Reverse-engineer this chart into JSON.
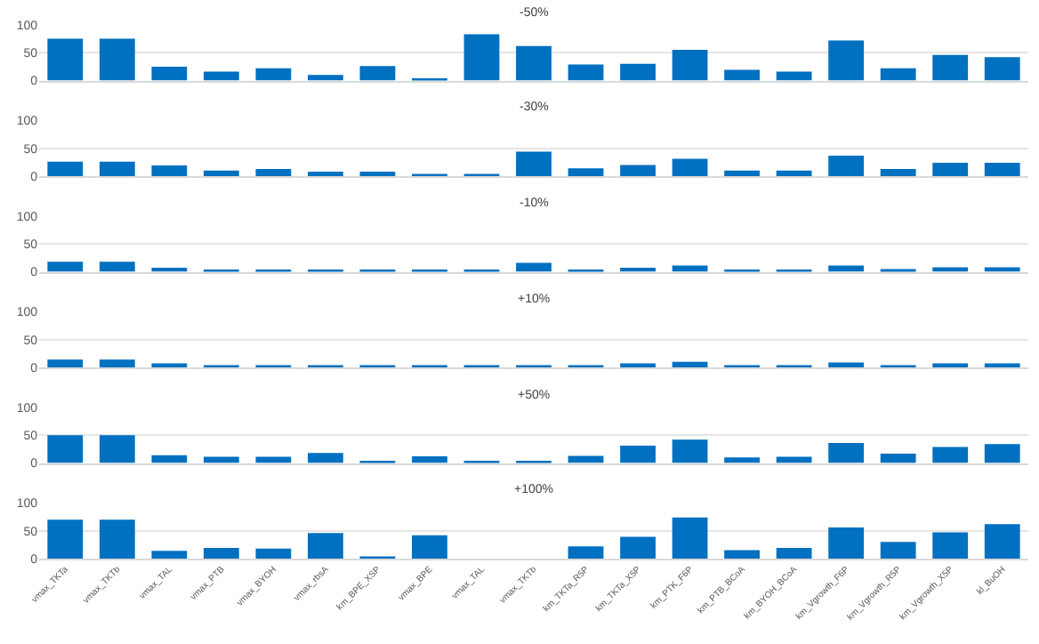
{
  "chart_data": [
    {
      "type": "bar",
      "title": "-50%",
      "categories": [
        null,
        null,
        null,
        null,
        null,
        null,
        null,
        null,
        null,
        null,
        null,
        null,
        null,
        null,
        null,
        null,
        null,
        null,
        null
      ],
      "color": "#0070c0",
      "values": [
        75,
        75,
        25,
        16,
        22,
        10,
        26,
        1,
        83,
        62,
        29,
        30,
        55,
        19,
        16,
        72,
        22,
        46,
        42
      ],
      "ylim": [
        0,
        100
      ],
      "yticks": [
        0,
        50,
        100
      ],
      "grid": "y",
      "tick_labels": "y"
    },
    {
      "type": "bar",
      "title": "-30%",
      "categories": [
        null,
        null,
        null,
        null,
        null,
        null,
        null,
        null,
        null,
        null,
        null,
        null,
        null,
        null,
        null,
        null,
        null,
        null,
        null
      ],
      "color": "#0070c0",
      "values": [
        26,
        26,
        19,
        10,
        13,
        8,
        8,
        1,
        1,
        44,
        14,
        20,
        31,
        10,
        10,
        37,
        13,
        24,
        24
      ],
      "ylim": [
        0,
        100
      ],
      "yticks": [
        0,
        50,
        100
      ],
      "grid": "y",
      "tick_labels": "y"
    },
    {
      "type": "bar",
      "title": "-10%",
      "categories": [
        null,
        null,
        null,
        null,
        null,
        null,
        null,
        null,
        null,
        null,
        null,
        null,
        null,
        null,
        null,
        null,
        null,
        null,
        null
      ],
      "color": "#0070c0",
      "values": [
        18,
        18,
        7,
        3,
        3,
        3,
        2,
        2,
        1,
        16,
        4,
        7,
        11,
        3,
        3,
        11,
        5,
        8,
        8
      ],
      "ylim": [
        0,
        100
      ],
      "yticks": [
        0,
        50,
        100
      ],
      "grid": "y",
      "tick_labels": "y"
    },
    {
      "type": "bar",
      "title": "+10%",
      "categories": [
        null,
        null,
        null,
        null,
        null,
        null,
        null,
        null,
        null,
        null,
        null,
        null,
        null,
        null,
        null,
        null,
        null,
        null,
        null
      ],
      "color": "#0070c0",
      "values": [
        14,
        14,
        7,
        3,
        4,
        4,
        1,
        2,
        1,
        1,
        4,
        7,
        10,
        3,
        3,
        9,
        4,
        7,
        7
      ],
      "ylim": [
        0,
        100
      ],
      "yticks": [
        0,
        50,
        100
      ],
      "grid": "y",
      "tick_labels": "y"
    },
    {
      "type": "bar",
      "title": "+50%",
      "categories": [
        null,
        null,
        null,
        null,
        null,
        null,
        null,
        null,
        null,
        null,
        null,
        null,
        null,
        null,
        null,
        null,
        null,
        null,
        null
      ],
      "color": "#0070c0",
      "values": [
        50,
        50,
        14,
        11,
        11,
        18,
        2,
        12,
        1,
        1,
        13,
        31,
        42,
        10,
        11,
        36,
        17,
        29,
        34
      ],
      "ylim": [
        0,
        100
      ],
      "yticks": [
        0,
        50,
        100
      ],
      "grid": "y",
      "tick_labels": "y"
    },
    {
      "type": "bar",
      "title": "+100%",
      "categories": [
        "vmax_TKTa",
        "vmax_TKTb",
        "vmax_TAL",
        "vmax_PTB",
        "vmax_BYOH",
        "vmax_rbsA",
        "km_BPE_XSP",
        "vmax_BPE",
        "vmax_TAL",
        "vmax_TKTb",
        "km_TKTa_R5P",
        "km_TKTa_X5P",
        "km_PTK_F6P",
        "km_PTB_BCoA",
        "km_BYOH_BCoA",
        "km_Vgrowth_F6P",
        "km_Vgrowth_R5P",
        "km_Vgrowth_X5P",
        "kl_BuOH"
      ],
      "color": "#0070c0",
      "values": [
        70,
        70,
        14,
        19,
        18,
        46,
        2,
        42,
        0,
        0,
        22,
        39,
        74,
        15,
        19,
        56,
        30,
        47,
        62
      ],
      "ylim": [
        0,
        100
      ],
      "yticks": [
        0,
        50,
        100
      ],
      "grid": "y"
    }
  ]
}
